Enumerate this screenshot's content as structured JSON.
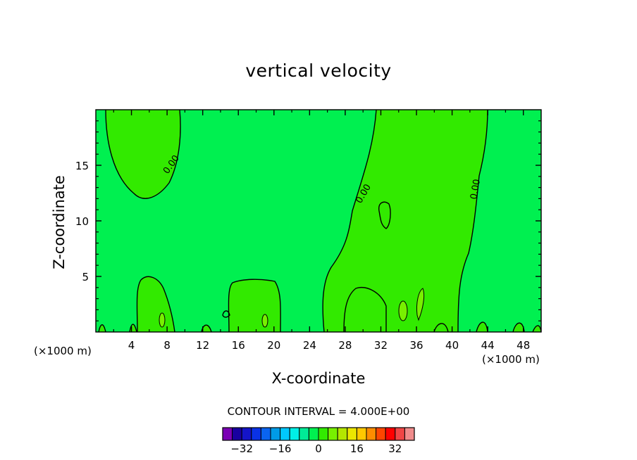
{
  "chart_data": {
    "type": "contour",
    "title": "vertical velocity",
    "xlabel": "X-coordinate",
    "ylabel": "Z-coordinate",
    "x_unit": "(×1000 m)",
    "y_unit": "(×1000 m)",
    "xlim": [
      0,
      50
    ],
    "ylim": [
      0,
      20
    ],
    "x_ticks": [
      4,
      8,
      12,
      16,
      20,
      24,
      28,
      32,
      36,
      40,
      44,
      48
    ],
    "y_ticks": [
      5,
      10,
      15
    ],
    "contour_interval_label": "CONTOUR INTERVAL = 4.000E+00",
    "contour_labels": [
      "0.00",
      "0.00",
      "0.00"
    ],
    "colorbar": {
      "levels": [
        -36,
        -32,
        -28,
        -24,
        -20,
        -16,
        -12,
        -8,
        -4,
        0,
        4,
        8,
        12,
        16,
        20,
        24,
        28,
        32,
        36
      ],
      "colors": [
        "#7a00b4",
        "#1800a0",
        "#1414c8",
        "#0a32e6",
        "#0a64f0",
        "#009be6",
        "#00c8ff",
        "#00f0e6",
        "#00eb96",
        "#00f050",
        "#32ea00",
        "#78f000",
        "#b4e600",
        "#ebe600",
        "#ffc800",
        "#ff8c00",
        "#ff4600",
        "#ff0000",
        "#f04646",
        "#f08c8c"
      ],
      "tick_labels": [
        "-32",
        "-16",
        "0",
        "16",
        "32"
      ],
      "tick_values": [
        -32,
        -16,
        0,
        16,
        32
      ]
    },
    "region_colors": {
      "negative": "#00f050",
      "positive": "#32ea00",
      "strong_positive": "#78f000"
    },
    "grid": false
  }
}
